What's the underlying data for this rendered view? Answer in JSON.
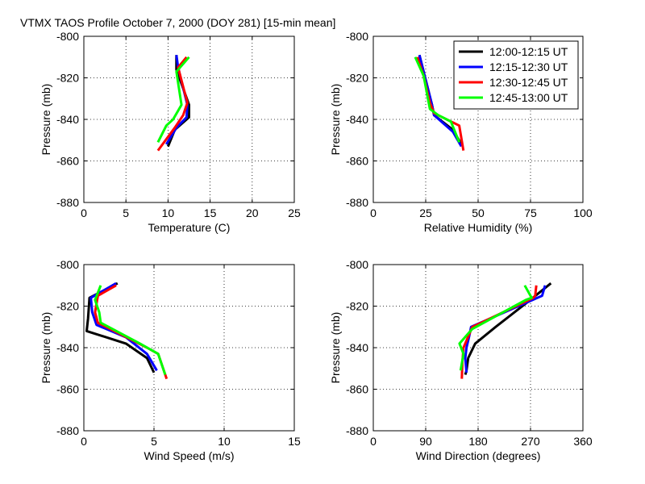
{
  "title": "VTMX TAOS Profile   October 7, 2000 (DOY 281) [15-min mean]",
  "legend": {
    "placement": "top-right of relative humidity panel",
    "entries": [
      {
        "label": "12:00-12:15 UT",
        "color": "#000000"
      },
      {
        "label": "12:15-12:30 UT",
        "color": "#0000ff"
      },
      {
        "label": "12:30-12:45 UT",
        "color": "#ff0000"
      },
      {
        "label": "12:45-13:00 UT",
        "color": "#00ff00"
      }
    ]
  },
  "chart_data": [
    {
      "type": "line",
      "xlabel": "Temperature (C)",
      "ylabel": "Pressure (mb)",
      "xlim": [
        0,
        25
      ],
      "ylim": [
        -880,
        -800
      ],
      "xticks": [
        "0",
        "5",
        "10",
        "15",
        "20",
        "25"
      ],
      "yticks": [
        "-800",
        "-820",
        "-840",
        "-860",
        "-880"
      ],
      "grid": true,
      "series": [
        {
          "name": "12:00-12:15 UT",
          "color": "#000000",
          "x": [
            11.0,
            11.0,
            12.5,
            12.5,
            10.8,
            10.0
          ],
          "y": [
            -809,
            -816,
            -833,
            -839,
            -845,
            -853
          ]
        },
        {
          "name": "12:15-12:30 UT",
          "color": "#0000ff",
          "x": [
            11.0,
            11.2,
            12.3,
            12.2,
            11.0,
            9.8
          ],
          "y": [
            -809,
            -815,
            -833,
            -839,
            -844,
            -852
          ]
        },
        {
          "name": "12:30-12:45 UT",
          "color": "#ff0000",
          "x": [
            12.2,
            11.2,
            12.3,
            11.8,
            10.8,
            8.8
          ],
          "y": [
            -810,
            -815,
            -832,
            -838,
            -844,
            -855
          ]
        },
        {
          "name": "12:45-13:00 UT",
          "color": "#00ff00",
          "x": [
            12.5,
            11.0,
            11.6,
            10.6,
            9.8,
            8.8
          ],
          "y": [
            -810,
            -817,
            -833,
            -840,
            -843,
            -851
          ]
        }
      ]
    },
    {
      "type": "line",
      "xlabel": "Relative Humidity (%)",
      "ylabel": "Pressure (mb)",
      "xlim": [
        0,
        100
      ],
      "ylim": [
        -880,
        -800
      ],
      "xticks": [
        "0",
        "25",
        "50",
        "75",
        "100"
      ],
      "yticks": [
        "-800",
        "-820",
        "-840",
        "-860",
        "-880"
      ],
      "grid": true,
      "series": [
        {
          "name": "12:00-12:15 UT",
          "color": "#000000",
          "x": [
            22,
            25,
            28,
            29,
            38,
            42
          ],
          "y": [
            -809,
            -821,
            -833,
            -838,
            -845,
            -852
          ]
        },
        {
          "name": "12:15-12:30 UT",
          "color": "#0000ff",
          "x": [
            22,
            25,
            28,
            29,
            38,
            42
          ],
          "y": [
            -809,
            -821,
            -833,
            -838,
            -846,
            -853
          ]
        },
        {
          "name": "12:30-12:45 UT",
          "color": "#ff0000",
          "x": [
            21,
            24,
            27,
            29,
            41,
            43
          ],
          "y": [
            -810,
            -819,
            -832,
            -837,
            -843,
            -855
          ]
        },
        {
          "name": "12:45-13:00 UT",
          "color": "#00ff00",
          "x": [
            20,
            24,
            27,
            31,
            37,
            41
          ],
          "y": [
            -810,
            -819,
            -835,
            -838,
            -841,
            -851
          ]
        }
      ]
    },
    {
      "type": "line",
      "xlabel": "Wind Speed (m/s)",
      "ylabel": "Pressure (mb)",
      "xlim": [
        0,
        15
      ],
      "ylim": [
        -880,
        -800
      ],
      "xticks": [
        "0",
        "5",
        "10",
        "15"
      ],
      "yticks": [
        "-800",
        "-820",
        "-840",
        "-860",
        "-880"
      ],
      "grid": true,
      "series": [
        {
          "name": "12:00-12:15 UT",
          "color": "#000000",
          "x": [
            2.4,
            0.4,
            0.3,
            0.2,
            3.0,
            4.5,
            5.0
          ],
          "y": [
            -809,
            -816,
            -826,
            -832,
            -838,
            -845,
            -852
          ]
        },
        {
          "name": "12:15-12:30 UT",
          "color": "#0000ff",
          "x": [
            2.3,
            0.5,
            0.6,
            0.9,
            3.0,
            4.5,
            5.2
          ],
          "y": [
            -809,
            -816,
            -823,
            -829,
            -835,
            -843,
            -851
          ]
        },
        {
          "name": "12:30-12:45 UT",
          "color": "#ff0000",
          "x": [
            2.3,
            1.0,
            0.8,
            1.0,
            4.5,
            5.3,
            5.9
          ],
          "y": [
            -810,
            -815,
            -823,
            -828,
            -840,
            -843,
            -855
          ]
        },
        {
          "name": "12:45-13:00 UT",
          "color": "#00ff00",
          "x": [
            1.2,
            0.8,
            1.1,
            1.2,
            4.0,
            5.3,
            5.8
          ],
          "y": [
            -810,
            -817,
            -823,
            -828,
            -838,
            -843,
            -853
          ]
        }
      ]
    },
    {
      "type": "line",
      "xlabel": "Wind Direction (degrees)",
      "ylabel": "Pressure (mb)",
      "xlim": [
        0,
        360
      ],
      "ylim": [
        -880,
        -800
      ],
      "xticks": [
        "0",
        "90",
        "180",
        "270",
        "360"
      ],
      "yticks": [
        "-800",
        "-820",
        "-840",
        "-860",
        "-880"
      ],
      "grid": true,
      "series": [
        {
          "name": "12:00-12:15 UT",
          "color": "#000000",
          "x": [
            305,
            265,
            210,
            175,
            163,
            160,
            158
          ],
          "y": [
            -809,
            -818,
            -830,
            -838,
            -845,
            -851,
            -853
          ]
        },
        {
          "name": "12:15-12:30 UT",
          "color": "#0000ff",
          "x": [
            295,
            290,
            168,
            165,
            160,
            158,
            160
          ],
          "y": [
            -810,
            -815,
            -830,
            -834,
            -840,
            -845,
            -852
          ]
        },
        {
          "name": "12:30-12:45 UT",
          "color": "#ff0000",
          "x": [
            280,
            278,
            275,
            170,
            155,
            153,
            152
          ],
          "y": [
            -810,
            -815,
            -816,
            -830,
            -840,
            -847,
            -855
          ]
        },
        {
          "name": "12:45-13:00 UT",
          "color": "#00ff00",
          "x": [
            260,
            272,
            262,
            170,
            148,
            155,
            150
          ],
          "y": [
            -810,
            -816,
            -817,
            -831,
            -838,
            -843,
            -851
          ]
        }
      ]
    }
  ]
}
